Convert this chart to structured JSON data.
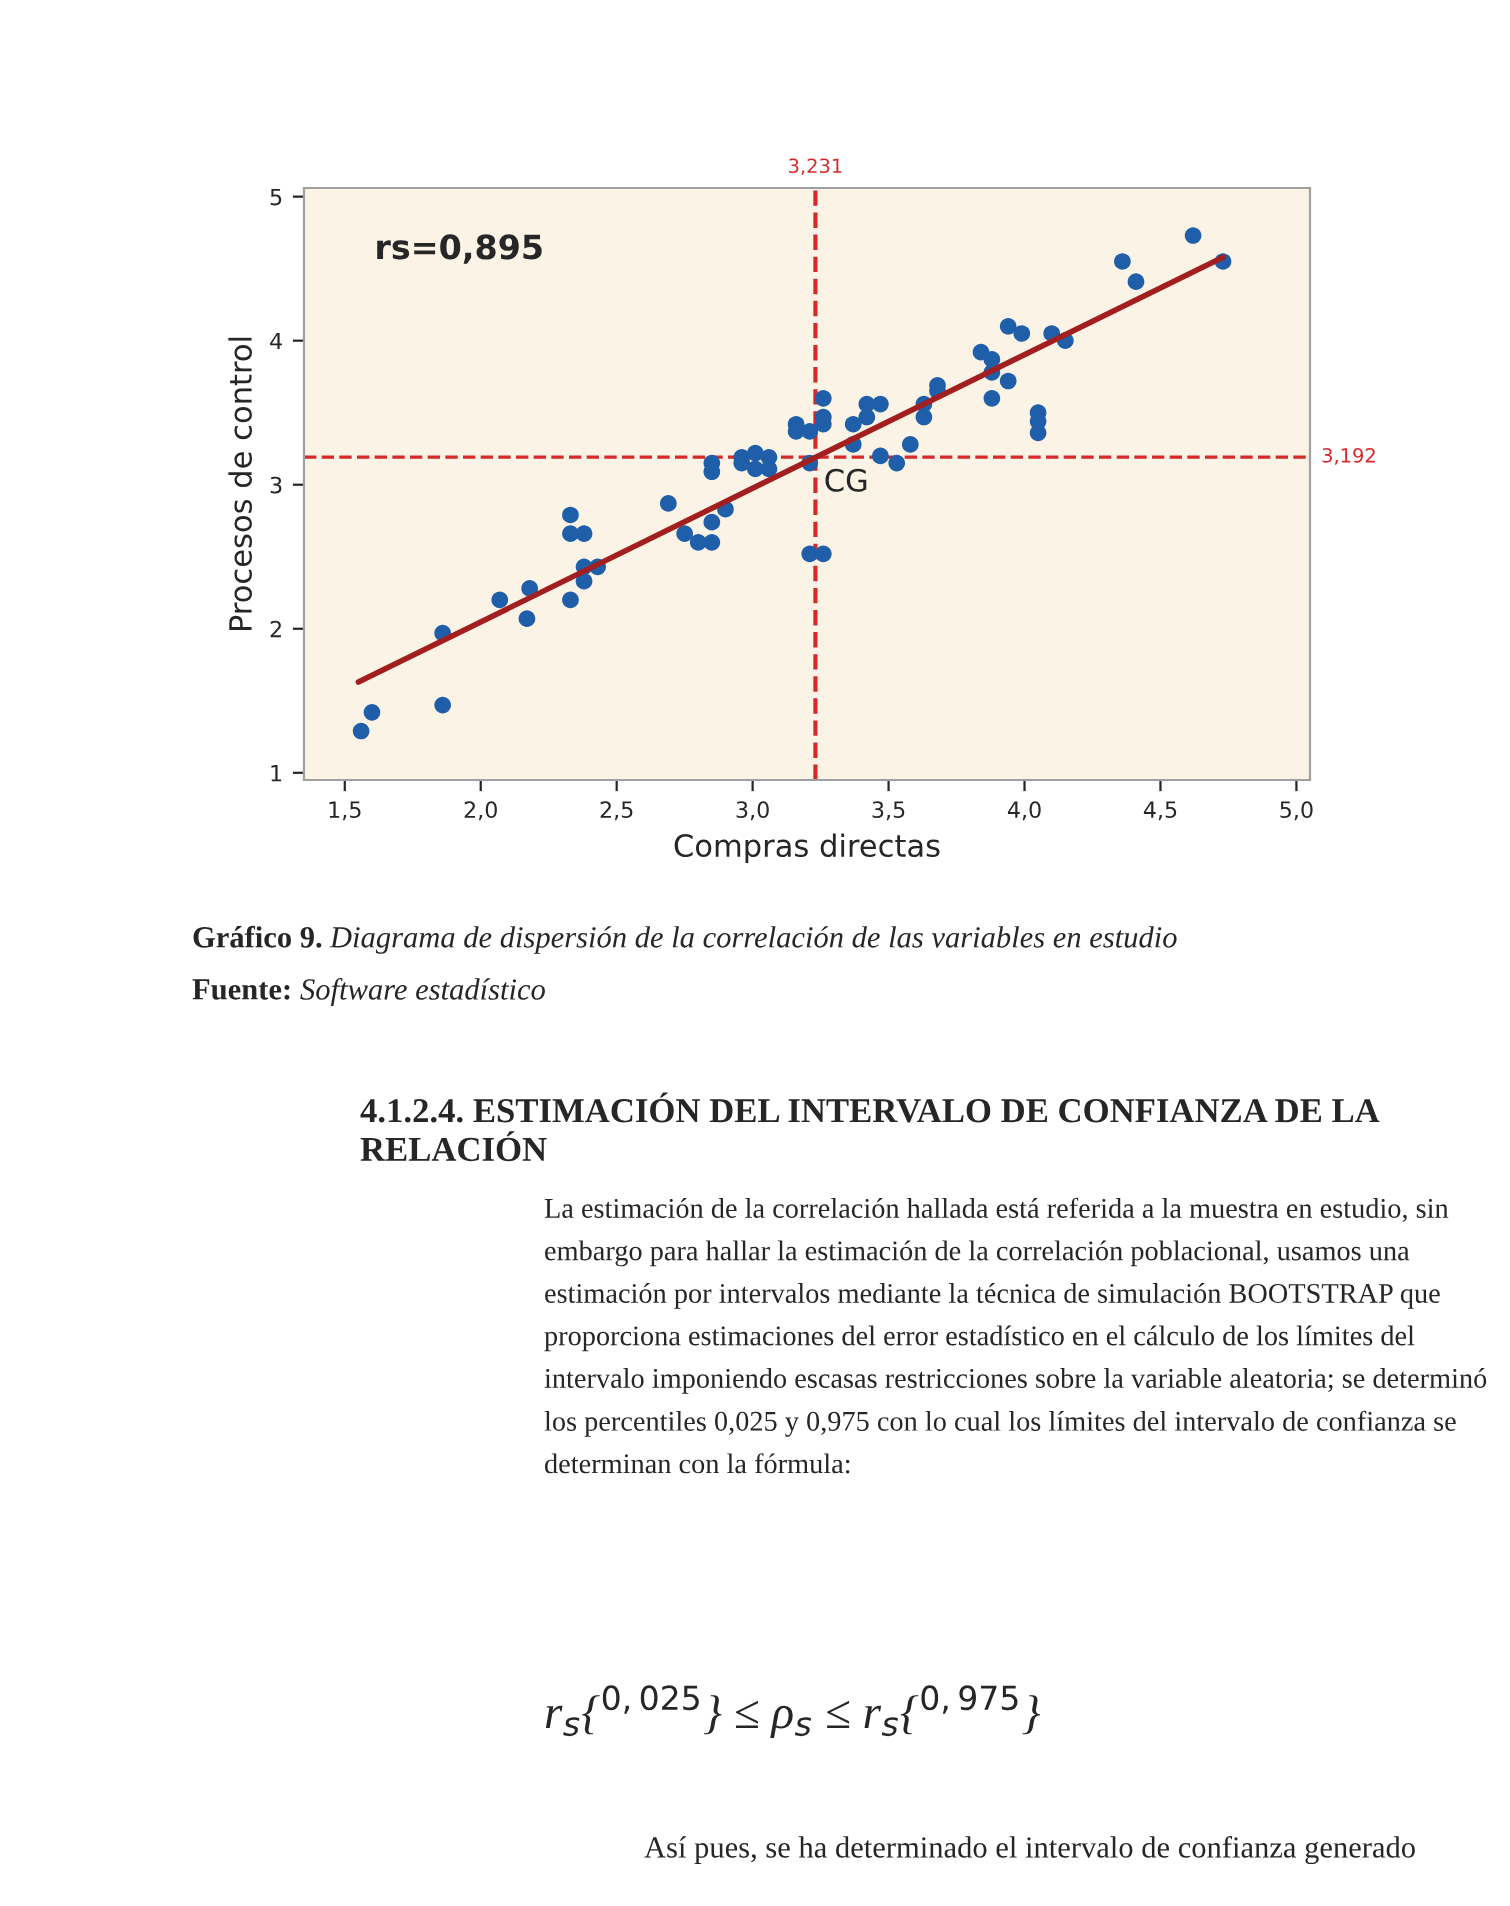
{
  "chart_data": {
    "type": "scatter",
    "xlabel": "Compras directas",
    "ylabel": "Procesos de control",
    "xlim": [
      1.35,
      5.05
    ],
    "ylim": [
      0.95,
      5.06
    ],
    "xticks": [
      {
        "value": 1.5,
        "label": "1,5"
      },
      {
        "value": 2.0,
        "label": "2,0"
      },
      {
        "value": 2.5,
        "label": "2,5"
      },
      {
        "value": 3.0,
        "label": "3,0"
      },
      {
        "value": 3.5,
        "label": "3,5"
      },
      {
        "value": 4.0,
        "label": "4,0"
      },
      {
        "value": 4.5,
        "label": "4,5"
      },
      {
        "value": 5.0,
        "label": "5,0"
      }
    ],
    "yticks": [
      1,
      2,
      3,
      4,
      5
    ],
    "grid": false,
    "series": [
      {
        "marker": "circle",
        "color": "#1f5ea8",
        "x": [
          1.56,
          1.6,
          1.86,
          1.86,
          2.07,
          2.18,
          2.17,
          2.33,
          2.33,
          2.33,
          2.38,
          2.38,
          2.38,
          2.43,
          2.69,
          2.75,
          2.8,
          2.85,
          2.85,
          2.85,
          2.85,
          2.9,
          2.96,
          2.96,
          3.01,
          3.01,
          3.06,
          3.06,
          3.16,
          3.16,
          3.21,
          3.21,
          3.21,
          3.26,
          3.26,
          3.26,
          3.26,
          3.37,
          3.37,
          3.42,
          3.42,
          3.47,
          3.47,
          3.53,
          3.58,
          3.63,
          3.63,
          3.68,
          3.68,
          3.84,
          3.88,
          3.88,
          3.88,
          3.94,
          3.94,
          3.99,
          4.05,
          4.05,
          4.05,
          4.1,
          4.15,
          4.36,
          4.41,
          4.62,
          4.73
        ],
        "values": [
          1.29,
          1.42,
          1.47,
          1.97,
          2.2,
          2.28,
          2.07,
          2.79,
          2.66,
          2.2,
          2.66,
          2.43,
          2.33,
          2.43,
          2.87,
          2.66,
          2.6,
          2.6,
          2.74,
          3.15,
          3.09,
          2.83,
          3.19,
          3.15,
          3.22,
          3.11,
          3.19,
          3.11,
          3.42,
          3.37,
          3.37,
          3.15,
          2.52,
          2.52,
          3.6,
          3.47,
          3.42,
          3.42,
          3.28,
          3.56,
          3.47,
          3.56,
          3.2,
          3.15,
          3.28,
          3.56,
          3.47,
          3.69,
          3.65,
          3.92,
          3.87,
          3.78,
          3.6,
          4.1,
          3.72,
          4.05,
          3.5,
          3.44,
          3.36,
          4.05,
          4.0,
          4.55,
          4.41,
          4.73,
          4.55
        ]
      },
      {
        "type": "line",
        "color": "#a31f1f",
        "x": [
          1.55,
          4.73
        ],
        "values": [
          1.63,
          4.58
        ]
      }
    ],
    "ref_lines": [
      {
        "axis": "x",
        "value": 3.231,
        "label": "3,231",
        "color": "#d42a2a",
        "line_style": "dashed"
      },
      {
        "axis": "y",
        "value": 3.192,
        "label": "3,192",
        "color": "#d42a2a",
        "line_style": "dashed"
      }
    ],
    "annotations": [
      "rs=0,895",
      {
        "text": "CG",
        "x": 3.231,
        "y": 3.192
      },
      "Gráfico 9.",
      "Diagrama de dispersión de la correlación de las variables en estudio",
      "Fuente:",
      "Software estadístico",
      "4.1.2.4. ESTIMACIÓN DEL INTERVALO DE CONFIANZA DE LA RELACIÓN",
      "La estimación de la correlación hallada está referida a la muestra en estudio, sin embargo para hallar la estimación de la correlación poblacional, usamos una estimación por intervalos mediante la técnica de simulación BOOTSTRAP que proporciona estimaciones del error estadístico en el cálculo de los límites del intervalo imponiendo escasas restricciones sobre la variable aleatoria; se determinó los percentiles 0,025 y 0,975 con lo cual los límites del intervalo de confianza se determinan con la fórmula:",
      "r$_{s}${$^{0,025}$} ≤ ρ$_{s}$ ≤ r$_{s}${$^{0,975}$}",
      "Así pues, se ha determinado el intervalo de confianza generado"
    ]
  }
}
